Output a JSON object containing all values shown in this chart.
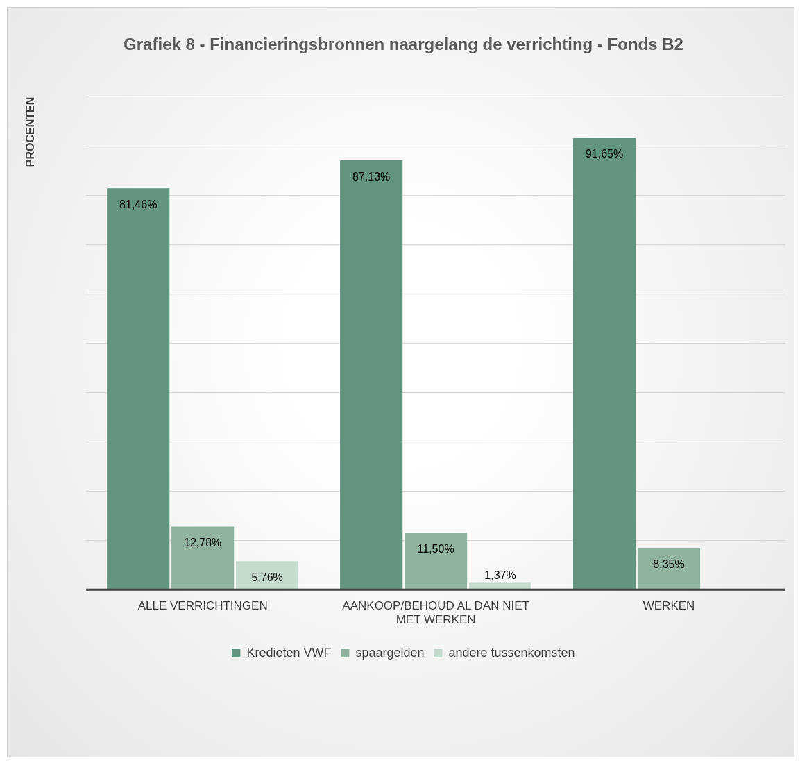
{
  "chart_data": {
    "type": "bar",
    "title": "Grafiek 8 - Financieringsbronnen naargelang de verrichting - Fonds B2",
    "ylabel": "PROCENTEN",
    "categories": [
      "ALLE VERRICHTINGEN",
      "AANKOOP/BEHOUD AL DAN NIET MET WERKEN",
      "WERKEN"
    ],
    "series": [
      {
        "name": "Kredieten VWF",
        "color": "#629480",
        "values": [
          81.46,
          87.13,
          91.65
        ],
        "value_labels": [
          "81,46%",
          "87,13%",
          "91,65%"
        ]
      },
      {
        "name": "spaargelden",
        "color": "#8fb39f",
        "values": [
          12.78,
          11.5,
          8.35
        ],
        "value_labels": [
          "12,78%",
          "11,50%",
          "8,35%"
        ]
      },
      {
        "name": "andere tussenkomsten",
        "color": "#c3dacd",
        "values": [
          5.76,
          1.37,
          null
        ],
        "value_labels": [
          "5,76%",
          "1,37%",
          null
        ]
      }
    ],
    "ylim": [
      0,
      100
    ],
    "yticks": [
      {
        "value": 0,
        "label": null
      },
      {
        "value": 10,
        "label": null
      },
      {
        "value": 20,
        "label": null
      },
      {
        "value": 30,
        "label": null
      },
      {
        "value": 40,
        "label": null
      },
      {
        "value": 50,
        "label": null
      },
      {
        "value": 60,
        "label": null
      },
      {
        "value": 70,
        "label": null
      },
      {
        "value": 80,
        "label": null
      },
      {
        "value": 90,
        "label": null
      },
      {
        "value": 100,
        "label": null
      }
    ],
    "grid": "y",
    "legend": "bottom",
    "tick_labels": "x"
  }
}
